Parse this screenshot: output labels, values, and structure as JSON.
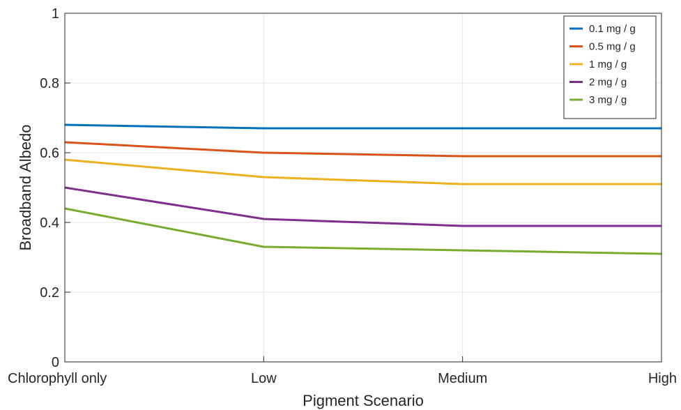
{
  "chart_data": {
    "type": "line",
    "xlabel": "Pigment Scenario",
    "ylabel": "Broadband Albedo",
    "categories": [
      "Chlorophyll only",
      "Low",
      "Medium",
      "High"
    ],
    "ylim": [
      0,
      1
    ],
    "yticks": [
      "0",
      "0.2",
      "0.4",
      "0.6",
      "0.8",
      "1"
    ],
    "grid": true,
    "legend_position": "top-right",
    "series": [
      {
        "name": "0.1 mg / g",
        "color": "#0072BD",
        "values": [
          0.68,
          0.67,
          0.67,
          0.67
        ]
      },
      {
        "name": "0.5 mg / g",
        "color": "#D95319",
        "values": [
          0.63,
          0.6,
          0.59,
          0.59
        ]
      },
      {
        "name": "1 mg / g",
        "color": "#EDB120",
        "values": [
          0.58,
          0.53,
          0.51,
          0.51
        ]
      },
      {
        "name": "2 mg / g",
        "color": "#7E2F8E",
        "values": [
          0.5,
          0.41,
          0.39,
          0.39
        ]
      },
      {
        "name": "3 mg / g",
        "color": "#77AC30",
        "values": [
          0.44,
          0.33,
          0.32,
          0.31
        ]
      }
    ]
  }
}
